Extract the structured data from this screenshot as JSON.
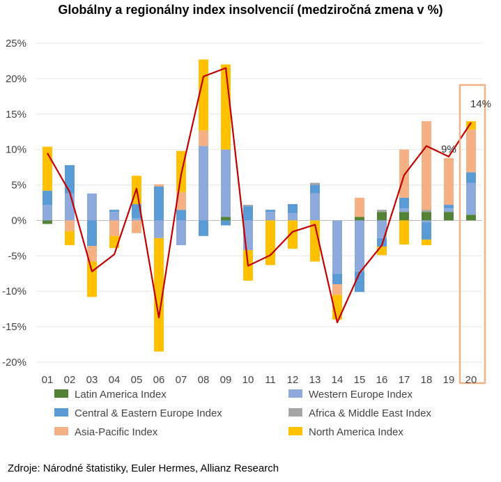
{
  "title": "Globálny a regionálny index insolvencií (medziročná zmena v %)",
  "source": "Zdroje: Národné štatistiky, Euler Hermes, Allianz Research",
  "colors": {
    "latin_america": "#548235",
    "western_europe": "#8EA9DB",
    "central_eastern_europe": "#5B9BD5",
    "africa_middle_east": "#A5A5A5",
    "asia_pacific": "#F4B183",
    "north_america": "#FFC000",
    "global_line": "#C00000",
    "highlight_box": "#F4B183"
  },
  "chart_data": {
    "type": "bar",
    "stacked": true,
    "categories": [
      "01",
      "02",
      "03",
      "04",
      "05",
      "06",
      "07",
      "08",
      "09",
      "10",
      "11",
      "12",
      "13",
      "14",
      "15",
      "16",
      "17",
      "18",
      "19",
      "20"
    ],
    "ylim": [
      -20,
      25
    ],
    "yticks": [
      -20,
      -15,
      -10,
      -5,
      0,
      5,
      10,
      15,
      20,
      25
    ],
    "ytick_labels": [
      "-20%",
      "-15%",
      "-10%",
      "-5%",
      "0%",
      "5%",
      "10%",
      "15%",
      "20%",
      "25%"
    ],
    "grid": true,
    "legend_position": "bottom",
    "series": [
      {
        "name": "Latin America Index",
        "color_key": "latin_america",
        "values": [
          -0.5,
          0,
          0,
          0,
          0,
          0,
          0,
          0,
          0.5,
          0,
          0,
          0,
          0,
          0,
          0.5,
          1.2,
          1.2,
          1.2,
          1.2,
          0.8
        ]
      },
      {
        "name": "Western Europe Index",
        "color_key": "western_europe",
        "values": [
          2.2,
          3.8,
          3.8,
          1.2,
          0.3,
          -2.5,
          -3.5,
          10.5,
          9.5,
          -4.2,
          1.2,
          1.0,
          3.8,
          -7.5,
          -7.2,
          -2.5,
          0.5,
          -0.3,
          0.5,
          4.5
        ]
      },
      {
        "name": "Central & Eastern Europe Index",
        "color_key": "central_eastern_europe",
        "values": [
          2.0,
          4.0,
          -3.6,
          0.3,
          2.0,
          4.8,
          1.5,
          -2.2,
          -0.7,
          2.0,
          0.3,
          1.3,
          1.2,
          -1.5,
          -2.9,
          -1.2,
          1.5,
          -2.4,
          0.5,
          1.5
        ]
      },
      {
        "name": "Africa & Middle East Index",
        "color_key": "africa_middle_east",
        "values": [
          0,
          0,
          0,
          0,
          0,
          0,
          0,
          0,
          0,
          0.2,
          0,
          0,
          0.3,
          0,
          0,
          0.3,
          0,
          0.3,
          0,
          0
        ]
      },
      {
        "name": "Asia-Pacific Index",
        "color_key": "asia_pacific",
        "values": [
          0,
          -1.5,
          -2.2,
          -2.2,
          -1.8,
          0.3,
          2.5,
          2.2,
          0,
          0,
          0,
          0,
          0,
          -1.5,
          2.7,
          0,
          6.8,
          12.5,
          6.6,
          6.0
        ]
      },
      {
        "name": "North America Index",
        "color_key": "north_america",
        "values": [
          6.2,
          -2.0,
          -5.0,
          -1.7,
          4.0,
          -16.0,
          5.8,
          10.0,
          12.0,
          -4.3,
          -6.3,
          -4.0,
          -5.8,
          -3.5,
          0,
          -1.2,
          -3.4,
          -0.8,
          0,
          1.2
        ]
      }
    ],
    "line": {
      "name": "Global",
      "color_key": "global_line",
      "values": [
        9.5,
        4.0,
        -7.2,
        -4.8,
        4.5,
        -13.7,
        6.5,
        20.3,
        21.5,
        -6.4,
        -4.9,
        -1.6,
        -0.6,
        -14.4,
        -7.4,
        -3.5,
        6.4,
        10.5,
        9.0,
        13.8
      ]
    },
    "annotations": [
      {
        "text": "9%",
        "category": "19",
        "value": 9.0
      },
      {
        "text": "14%",
        "category": "20",
        "value": 13.8
      }
    ],
    "highlight_category": "20"
  }
}
